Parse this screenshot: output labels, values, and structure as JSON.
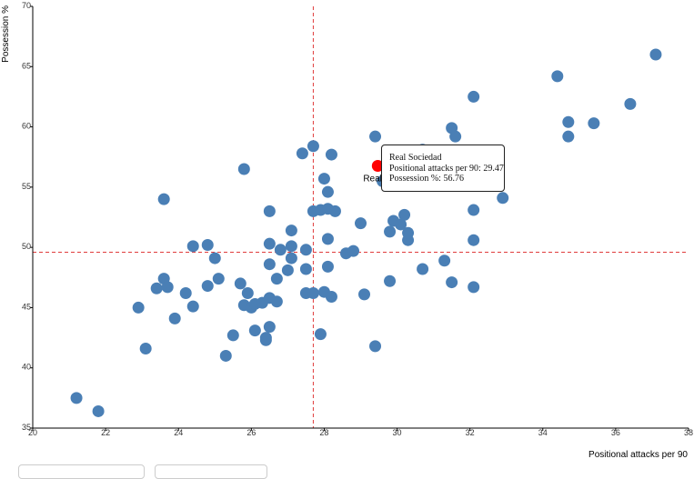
{
  "chart_data": {
    "type": "scatter",
    "xlabel": "Positional attacks per 90",
    "ylabel": "Possession %",
    "xlim": [
      20,
      38
    ],
    "ylim": [
      35,
      70
    ],
    "xticks": [
      20,
      22,
      24,
      26,
      28,
      30,
      32,
      34,
      36,
      38
    ],
    "yticks": [
      35,
      40,
      45,
      50,
      55,
      60,
      65,
      70
    ],
    "reference_lines": {
      "x": 27.7,
      "y": 49.6
    },
    "colors": {
      "point": "#4a7fb5",
      "highlight": "#ff0000",
      "reference": "#e03c3c"
    },
    "points": [
      [
        21.2,
        37.5
      ],
      [
        21.8,
        36.4
      ],
      [
        22.9,
        45.0
      ],
      [
        23.1,
        41.6
      ],
      [
        23.4,
        46.6
      ],
      [
        23.6,
        47.4
      ],
      [
        23.7,
        46.7
      ],
      [
        23.6,
        54.0
      ],
      [
        23.9,
        44.1
      ],
      [
        24.2,
        46.2
      ],
      [
        24.4,
        45.1
      ],
      [
        24.4,
        50.1
      ],
      [
        24.8,
        50.2
      ],
      [
        24.8,
        46.8
      ],
      [
        25.0,
        49.1
      ],
      [
        25.1,
        47.4
      ],
      [
        25.3,
        41.0
      ],
      [
        25.5,
        42.7
      ],
      [
        25.7,
        47.0
      ],
      [
        25.8,
        45.2
      ],
      [
        25.8,
        56.5
      ],
      [
        25.9,
        46.2
      ],
      [
        26.0,
        45.0
      ],
      [
        26.1,
        43.1
      ],
      [
        26.1,
        45.3
      ],
      [
        26.3,
        45.4
      ],
      [
        26.4,
        42.5
      ],
      [
        26.4,
        42.3
      ],
      [
        26.5,
        43.4
      ],
      [
        26.5,
        45.8
      ],
      [
        26.5,
        48.6
      ],
      [
        26.5,
        50.3
      ],
      [
        26.5,
        53.0
      ],
      [
        26.7,
        47.4
      ],
      [
        26.7,
        45.5
      ],
      [
        26.8,
        49.8
      ],
      [
        27.0,
        48.1
      ],
      [
        27.1,
        50.1
      ],
      [
        27.1,
        49.1
      ],
      [
        27.1,
        51.4
      ],
      [
        27.4,
        57.8
      ],
      [
        27.5,
        49.8
      ],
      [
        27.5,
        48.2
      ],
      [
        27.5,
        46.2
      ],
      [
        27.7,
        46.2
      ],
      [
        27.7,
        58.4
      ],
      [
        27.7,
        53.0
      ],
      [
        27.9,
        42.8
      ],
      [
        27.9,
        53.1
      ],
      [
        28.0,
        46.3
      ],
      [
        28.0,
        55.7
      ],
      [
        28.1,
        53.2
      ],
      [
        28.1,
        54.6
      ],
      [
        28.1,
        50.7
      ],
      [
        28.1,
        48.4
      ],
      [
        28.2,
        45.9
      ],
      [
        28.2,
        57.7
      ],
      [
        28.3,
        53.0
      ],
      [
        28.6,
        49.5
      ],
      [
        28.8,
        49.7
      ],
      [
        29.0,
        52.0
      ],
      [
        29.1,
        46.1
      ],
      [
        29.4,
        41.8
      ],
      [
        29.4,
        59.2
      ],
      [
        29.47,
        56.76
      ],
      [
        29.6,
        55.5
      ],
      [
        29.8,
        51.3
      ],
      [
        29.8,
        47.2
      ],
      [
        29.9,
        52.2
      ],
      [
        30.1,
        51.9
      ],
      [
        30.2,
        52.7
      ],
      [
        30.3,
        50.6
      ],
      [
        30.3,
        51.2
      ],
      [
        30.7,
        58.1
      ],
      [
        30.7,
        48.2
      ],
      [
        31.3,
        48.9
      ],
      [
        31.5,
        47.1
      ],
      [
        31.5,
        59.9
      ],
      [
        31.6,
        59.2
      ],
      [
        32.1,
        62.5
      ],
      [
        32.1,
        50.6
      ],
      [
        32.1,
        46.7
      ],
      [
        32.1,
        53.1
      ],
      [
        32.3,
        57.0
      ],
      [
        32.5,
        57.2
      ],
      [
        32.9,
        54.1
      ],
      [
        34.4,
        64.2
      ],
      [
        34.7,
        60.4
      ],
      [
        34.7,
        59.2
      ],
      [
        35.4,
        60.3
      ],
      [
        36.4,
        61.9
      ],
      [
        37.1,
        66.0
      ]
    ],
    "highlight": {
      "name": "Real Sociedad",
      "x": 29.47,
      "y": 56.76,
      "label": "Real"
    },
    "tooltip": {
      "title": "Real Sociedad",
      "x_line": "Positional attacks per 90: 29.47",
      "y_line": "Possession %: 56.76"
    }
  }
}
